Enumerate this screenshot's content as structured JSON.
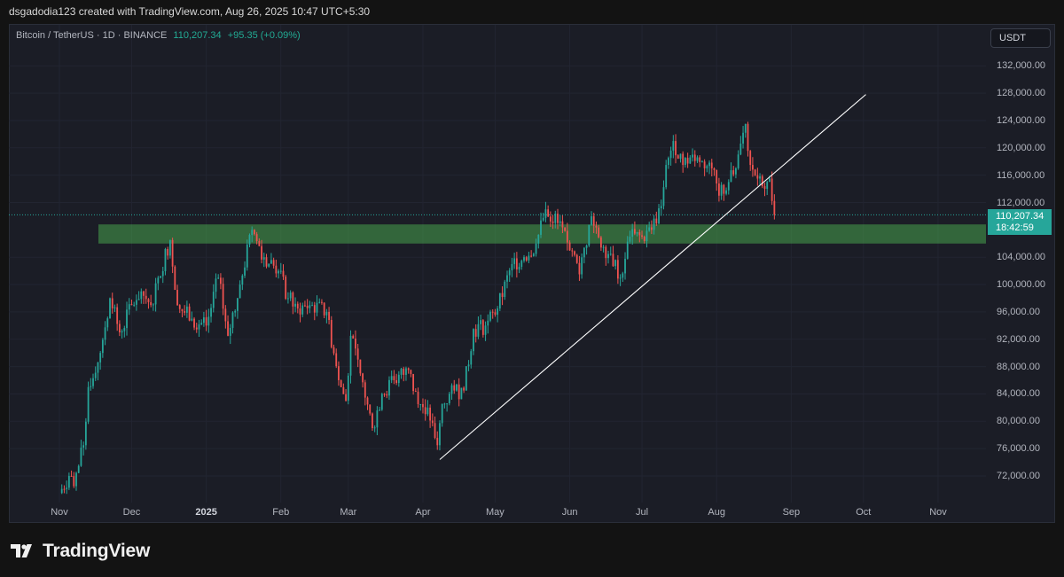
{
  "header": {
    "attribution": "dsgadodia123 created with TradingView.com, Aug 26, 2025 10:47 UTC+5:30"
  },
  "legend": {
    "symbol": "Bitcoin / TetherUS · 1D · BINANCE",
    "price": "110,207.34",
    "change": "+95.35 (+0.09%)"
  },
  "currency_button": "USDT",
  "price_tag": {
    "price": "110,207.34",
    "countdown": "18:42:59"
  },
  "footer": {
    "brand": "TradingView"
  },
  "colors": {
    "up": "#26a69a",
    "down": "#ef5350",
    "zone": "#4caf50",
    "trendline": "#ffffff",
    "background": "#1b1d26"
  },
  "chart_data": {
    "type": "candlestick",
    "symbol": "Bitcoin / TetherUS",
    "interval": "1D",
    "exchange": "BINANCE",
    "ylim": [
      69000,
      135500
    ],
    "y_ticks": [
      {
        "value": 72000,
        "label": "72,000.00"
      },
      {
        "value": 76000,
        "label": "76,000.00"
      },
      {
        "value": 80000,
        "label": "80,000.00"
      },
      {
        "value": 84000,
        "label": "84,000.00"
      },
      {
        "value": 88000,
        "label": "88,000.00"
      },
      {
        "value": 92000,
        "label": "92,000.00"
      },
      {
        "value": 96000,
        "label": "96,000.00"
      },
      {
        "value": 100000,
        "label": "100,000.00"
      },
      {
        "value": 104000,
        "label": "104,000.00"
      },
      {
        "value": 112000,
        "label": "112,000.00"
      },
      {
        "value": 116000,
        "label": "116,000.00"
      },
      {
        "value": 120000,
        "label": "120,000.00"
      },
      {
        "value": 124000,
        "label": "124,000.00"
      },
      {
        "value": 128000,
        "label": "128,000.00"
      },
      {
        "value": 132000,
        "label": "132,000.00"
      }
    ],
    "x_ticks": [
      {
        "label": "Nov",
        "bold": false
      },
      {
        "label": "Dec",
        "bold": false
      },
      {
        "label": "2025",
        "bold": true
      },
      {
        "label": "Feb",
        "bold": false
      },
      {
        "label": "Mar",
        "bold": false
      },
      {
        "label": "Apr",
        "bold": false
      },
      {
        "label": "May",
        "bold": false
      },
      {
        "label": "Jun",
        "bold": false
      },
      {
        "label": "Jul",
        "bold": false
      },
      {
        "label": "Aug",
        "bold": false
      },
      {
        "label": "Sep",
        "bold": false
      },
      {
        "label": "Oct",
        "bold": false
      },
      {
        "label": "Nov",
        "bold": false
      }
    ],
    "last_price": 110207.34,
    "closes": [
      {
        "date": "2024-11-01",
        "close": 69500
      },
      {
        "date": "2024-11-05",
        "close": 72000
      },
      {
        "date": "2024-11-07",
        "close": 70500
      },
      {
        "date": "2024-11-11",
        "close": 76500
      },
      {
        "date": "2024-11-13",
        "close": 85000
      },
      {
        "date": "2024-11-18",
        "close": 90000
      },
      {
        "date": "2024-11-22",
        "close": 98000
      },
      {
        "date": "2024-11-26",
        "close": 93000
      },
      {
        "date": "2024-12-01",
        "close": 97000
      },
      {
        "date": "2024-12-05",
        "close": 99000
      },
      {
        "date": "2024-12-09",
        "close": 97000
      },
      {
        "date": "2024-12-12",
        "close": 101000
      },
      {
        "date": "2024-12-17",
        "close": 106500
      },
      {
        "date": "2024-12-20",
        "close": 97000
      },
      {
        "date": "2024-12-26",
        "close": 95000
      },
      {
        "date": "2025-01-01",
        "close": 94000
      },
      {
        "date": "2025-01-06",
        "close": 101000
      },
      {
        "date": "2025-01-10",
        "close": 92500
      },
      {
        "date": "2025-01-15",
        "close": 100000
      },
      {
        "date": "2025-01-20",
        "close": 108000
      },
      {
        "date": "2025-01-25",
        "close": 104000
      },
      {
        "date": "2025-01-31",
        "close": 102000
      },
      {
        "date": "2025-02-04",
        "close": 98000
      },
      {
        "date": "2025-02-08",
        "close": 96500
      },
      {
        "date": "2025-02-14",
        "close": 97000
      },
      {
        "date": "2025-02-20",
        "close": 96000
      },
      {
        "date": "2025-02-25",
        "close": 86000
      },
      {
        "date": "2025-02-28",
        "close": 83000
      },
      {
        "date": "2025-03-02",
        "close": 92500
      },
      {
        "date": "2025-03-06",
        "close": 87000
      },
      {
        "date": "2025-03-11",
        "close": 79000
      },
      {
        "date": "2025-03-15",
        "close": 84000
      },
      {
        "date": "2025-03-20",
        "close": 86000
      },
      {
        "date": "2025-03-26",
        "close": 87500
      },
      {
        "date": "2025-03-30",
        "close": 82500
      },
      {
        "date": "2025-04-03",
        "close": 82000
      },
      {
        "date": "2025-04-07",
        "close": 76500
      },
      {
        "date": "2025-04-09",
        "close": 82500
      },
      {
        "date": "2025-04-14",
        "close": 84500
      },
      {
        "date": "2025-04-18",
        "close": 84500
      },
      {
        "date": "2025-04-22",
        "close": 93500
      },
      {
        "date": "2025-04-27",
        "close": 94000
      },
      {
        "date": "2025-05-02",
        "close": 96500
      },
      {
        "date": "2025-05-08",
        "close": 103000
      },
      {
        "date": "2025-05-13",
        "close": 104000
      },
      {
        "date": "2025-05-18",
        "close": 106000
      },
      {
        "date": "2025-05-22",
        "close": 111000
      },
      {
        "date": "2025-05-27",
        "close": 109000
      },
      {
        "date": "2025-06-01",
        "close": 105000
      },
      {
        "date": "2025-06-05",
        "close": 101500
      },
      {
        "date": "2025-06-10",
        "close": 110000
      },
      {
        "date": "2025-06-15",
        "close": 105500
      },
      {
        "date": "2025-06-18",
        "close": 104500
      },
      {
        "date": "2025-06-22",
        "close": 101000
      },
      {
        "date": "2025-06-26",
        "close": 107000
      },
      {
        "date": "2025-07-01",
        "close": 107000
      },
      {
        "date": "2025-07-05",
        "close": 108000
      },
      {
        "date": "2025-07-09",
        "close": 111500
      },
      {
        "date": "2025-07-11",
        "close": 117500
      },
      {
        "date": "2025-07-14",
        "close": 121000
      },
      {
        "date": "2025-07-18",
        "close": 117500
      },
      {
        "date": "2025-07-22",
        "close": 119000
      },
      {
        "date": "2025-07-26",
        "close": 118000
      },
      {
        "date": "2025-07-30",
        "close": 117000
      },
      {
        "date": "2025-08-02",
        "close": 113000
      },
      {
        "date": "2025-08-06",
        "close": 115000
      },
      {
        "date": "2025-08-09",
        "close": 117000
      },
      {
        "date": "2025-08-13",
        "close": 123500
      },
      {
        "date": "2025-08-15",
        "close": 117500
      },
      {
        "date": "2025-08-18",
        "close": 115500
      },
      {
        "date": "2025-08-21",
        "close": 114000
      },
      {
        "date": "2025-08-23",
        "close": 115500
      },
      {
        "date": "2025-08-25",
        "close": 110207.34
      }
    ],
    "annotations": {
      "support_zone": {
        "from": 106000,
        "to": 108800
      },
      "trendline": {
        "start": {
          "date": "2025-04-08",
          "price": 74400
        },
        "end": {
          "date": "2025-10-02",
          "price": 127800
        }
      },
      "last_price_line": 110207.34
    }
  }
}
